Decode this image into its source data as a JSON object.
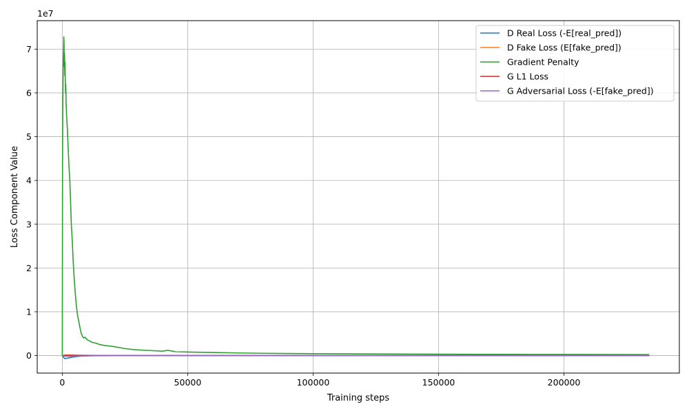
{
  "chart_data": {
    "type": "line",
    "title": "",
    "xlabel": "Training steps",
    "ylabel": "Loss Component Value",
    "y_offset_label": "1e7",
    "xlim": [
      -10000,
      246000
    ],
    "ylim": [
      -4000000,
      76500000
    ],
    "x_ticks": [
      0,
      50000,
      100000,
      150000,
      200000
    ],
    "x_tick_labels": [
      "0",
      "50000",
      "100000",
      "150000",
      "200000"
    ],
    "y_ticks": [
      0,
      10000000,
      20000000,
      30000000,
      40000000,
      50000000,
      60000000,
      70000000
    ],
    "y_tick_labels": [
      "0",
      "1",
      "2",
      "3",
      "4",
      "5",
      "6",
      "7"
    ],
    "grid": true,
    "legend_position": "top-right",
    "series": [
      {
        "name": "D Real Loss (-E[real_pred])",
        "color": "#1f77b4",
        "x": [
          0,
          500,
          1000,
          2000,
          3000,
          4000,
          6000,
          8000,
          12000,
          20000,
          50000,
          100000,
          150000,
          200000,
          234000
        ],
        "y": [
          0,
          -400000,
          -700000,
          -600000,
          -500000,
          -350000,
          -200000,
          -100000,
          -30000,
          0,
          0,
          0,
          0,
          0,
          0
        ]
      },
      {
        "name": "D Fake Loss (E[fake_pred])",
        "color": "#ff7f0e",
        "x": [
          0,
          1000,
          3000,
          6000,
          10000,
          20000,
          50000,
          100000,
          150000,
          200000,
          234000
        ],
        "y": [
          0,
          150000,
          180000,
          120000,
          60000,
          20000,
          0,
          0,
          0,
          0,
          0
        ]
      },
      {
        "name": "Gradient Penalty",
        "color": "#2ca02c",
        "x": [
          0,
          100,
          200,
          300,
          400,
          500,
          600,
          700,
          800,
          900,
          1000,
          1100,
          1200,
          1300,
          1400,
          1500,
          1700,
          2000,
          2300,
          2600,
          3000,
          3300,
          3600,
          4000,
          4300,
          4600,
          5000,
          5500,
          6000,
          6500,
          7000,
          7500,
          8000,
          8500,
          9000,
          10000,
          11000,
          12000,
          13000,
          14000,
          15000,
          17000,
          20000,
          23000,
          25000,
          28000,
          30000,
          35000,
          40000,
          42000,
          45000,
          50000,
          60000,
          70000,
          80000,
          90000,
          100000,
          120000,
          140000,
          160000,
          180000,
          200000,
          220000,
          234000
        ],
        "y": [
          0,
          44000000,
          56000000,
          62000000,
          68000000,
          70000000,
          72800000,
          71500000,
          66000000,
          69000000,
          64000000,
          67000000,
          63000000,
          60000000,
          62000000,
          58000000,
          55000000,
          52000000,
          48000000,
          44000000,
          40000000,
          35000000,
          30000000,
          26000000,
          22000000,
          19000000,
          15500000,
          12000000,
          9500000,
          8000000,
          6500000,
          5200000,
          4400000,
          4000000,
          4200000,
          3600000,
          3300000,
          3000000,
          2900000,
          2700000,
          2500000,
          2300000,
          2100000,
          1800000,
          1600000,
          1400000,
          1300000,
          1150000,
          1000000,
          1200000,
          900000,
          800000,
          700000,
          600000,
          520000,
          470000,
          430000,
          380000,
          340000,
          300000,
          270000,
          250000,
          230000,
          220000
        ]
      },
      {
        "name": "G L1 Loss",
        "color": "#d62728",
        "x": [
          0,
          50000,
          100000,
          150000,
          200000,
          234000
        ],
        "y": [
          0,
          0,
          0,
          0,
          0,
          0
        ]
      },
      {
        "name": "G Adversarial Loss (-E[fake_pred])",
        "color": "#9467bd",
        "x": [
          0,
          1000,
          3000,
          6000,
          10000,
          20000,
          50000,
          100000,
          150000,
          200000,
          234000
        ],
        "y": [
          0,
          -150000,
          -180000,
          -120000,
          -60000,
          -20000,
          0,
          0,
          0,
          0,
          0
        ]
      }
    ]
  }
}
